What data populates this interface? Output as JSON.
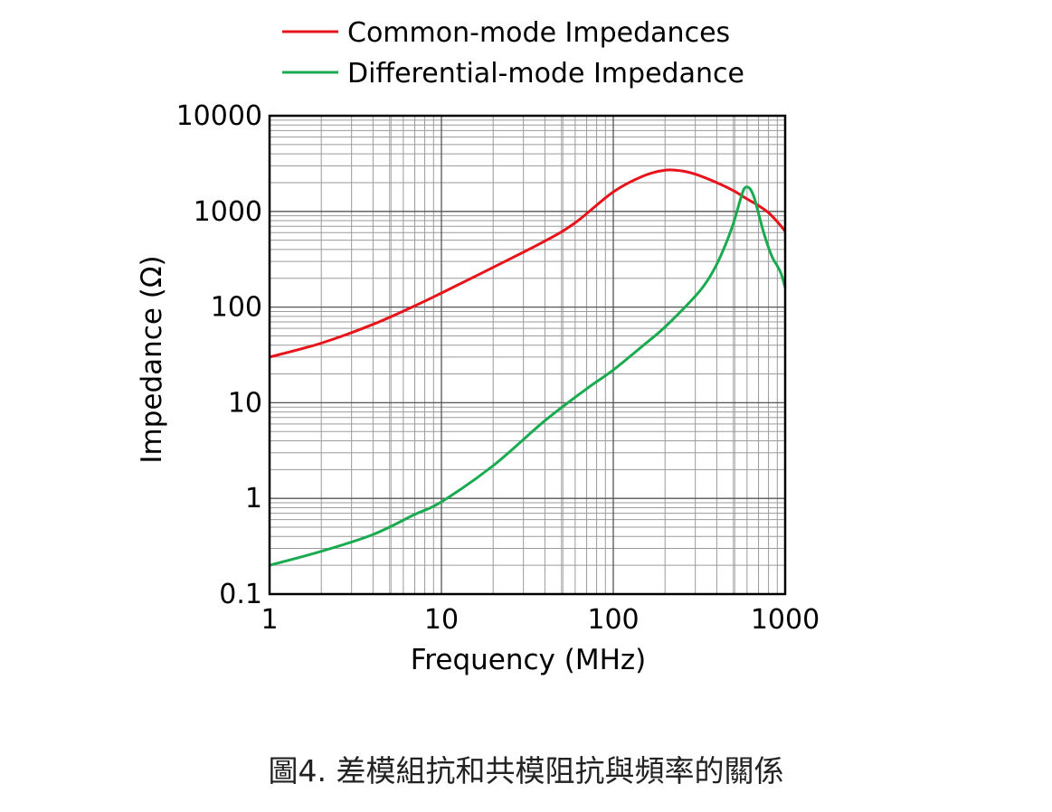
{
  "caption": "圖4. 差模組抗和共模阻抗與頻率的關係",
  "chart_data": {
    "type": "line",
    "xscale": "log",
    "yscale": "log",
    "xlim": [
      1,
      1000
    ],
    "ylim": [
      0.1,
      10000
    ],
    "xlabel": "Frequency (MHz)",
    "ylabel": "Impedance (Ω)",
    "xticks": [
      {
        "value": 1,
        "label": "1"
      },
      {
        "value": 10,
        "label": "10"
      },
      {
        "value": 100,
        "label": "100"
      },
      {
        "value": 1000,
        "label": "1000"
      }
    ],
    "yticks": [
      {
        "value": 0.1,
        "label": "0.1"
      },
      {
        "value": 1,
        "label": "1"
      },
      {
        "value": 10,
        "label": "10"
      },
      {
        "value": 100,
        "label": "100"
      },
      {
        "value": 1000,
        "label": "1000"
      },
      {
        "value": 10000,
        "label": "10000"
      }
    ],
    "grid": true,
    "legend_position": "top",
    "series": [
      {
        "name": "Common-mode Impedances",
        "color": "#e8141b",
        "x": [
          1,
          2,
          4,
          7,
          10,
          20,
          40,
          60,
          100,
          150,
          200,
          250,
          300,
          400,
          500,
          600,
          700,
          800,
          900,
          1000
        ],
        "y": [
          30,
          42,
          66,
          103,
          140,
          260,
          490,
          760,
          1600,
          2350,
          2700,
          2650,
          2450,
          2000,
          1650,
          1350,
          1150,
          970,
          780,
          620
        ]
      },
      {
        "name": "Differential-mode Impedance",
        "color": "#1aab50",
        "x": [
          1,
          2,
          4,
          7,
          10,
          20,
          40,
          70,
          100,
          150,
          200,
          300,
          350,
          400,
          450,
          500,
          550,
          580,
          620,
          660,
          700,
          750,
          800,
          850,
          900,
          950,
          1000
        ],
        "y": [
          0.2,
          0.28,
          0.42,
          0.68,
          0.92,
          2.2,
          6.5,
          14,
          22,
          40,
          62,
          130,
          185,
          280,
          450,
          750,
          1350,
          1750,
          1750,
          1400,
          950,
          600,
          420,
          320,
          270,
          220,
          160
        ]
      }
    ]
  }
}
